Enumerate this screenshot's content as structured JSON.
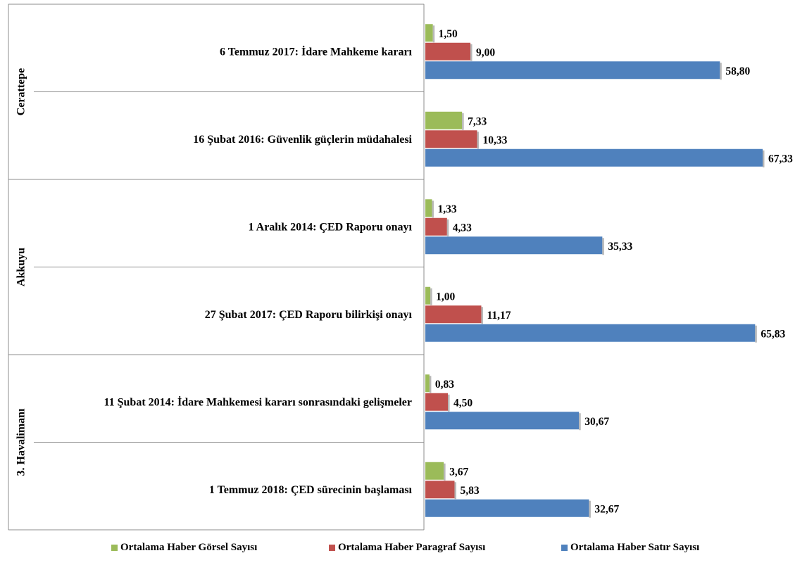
{
  "chart_data": {
    "type": "bar",
    "orientation": "horizontal",
    "grouped_by": [
      "Cerattepe",
      "Akkuyu",
      "3. Havalimanı"
    ],
    "groups": [
      {
        "name": "Cerattepe",
        "categories": [
          "6 Temmuz 2017: İdare Mahkeme kararı",
          "16 Şubat 2016: Güvenlik güçlerin müdahalesi"
        ]
      },
      {
        "name": "Akkuyu",
        "categories": [
          "1 Aralık 2014: ÇED Raporu onayı",
          "27 Şubat 2017: ÇED Raporu bilirkişi onayı"
        ]
      },
      {
        "name": "3. Havalimanı",
        "categories": [
          "11 Şubat 2014: İdare Mahkemesi kararı sonrasındaki gelişmeler",
          "1 Temmuz 2018: ÇED sürecinin başlaması"
        ]
      }
    ],
    "categories": [
      "6 Temmuz 2017: İdare Mahkeme kararı",
      "16 Şubat 2016: Güvenlik güçlerin müdahalesi",
      "1 Aralık 2014: ÇED Raporu onayı",
      "27 Şubat 2017: ÇED Raporu bilirkişi onayı",
      "11 Şubat 2014: İdare Mahkemesi kararı sonrasındaki gelişmeler",
      "1 Temmuz 2018: ÇED sürecinin başlaması"
    ],
    "series": [
      {
        "name": "Ortalama Haber Görsel Sayısı",
        "color": "#9bbb59",
        "values": [
          1.5,
          7.33,
          1.33,
          1.0,
          0.83,
          3.67
        ],
        "labels": [
          "1,50",
          "7,33",
          "1,33",
          "1,00",
          "0,83",
          "3,67"
        ]
      },
      {
        "name": "Ortalama Haber Paragraf Sayısı",
        "color": "#c0504d",
        "values": [
          9.0,
          10.33,
          4.33,
          11.17,
          4.5,
          5.83
        ],
        "labels": [
          "9,00",
          "10,33",
          "4,33",
          "11,17",
          "4,50",
          "5,83"
        ]
      },
      {
        "name": "Ortalama Haber Satır Sayısı",
        "color": "#4f81bd",
        "values": [
          58.8,
          67.33,
          35.33,
          65.83,
          30.67,
          32.67
        ],
        "labels": [
          "58,80",
          "67,33",
          "35,33",
          "65,83",
          "30,67",
          "32,67"
        ]
      }
    ],
    "xlim": [
      0,
      70
    ],
    "grid": false,
    "legend_position": "bottom"
  }
}
